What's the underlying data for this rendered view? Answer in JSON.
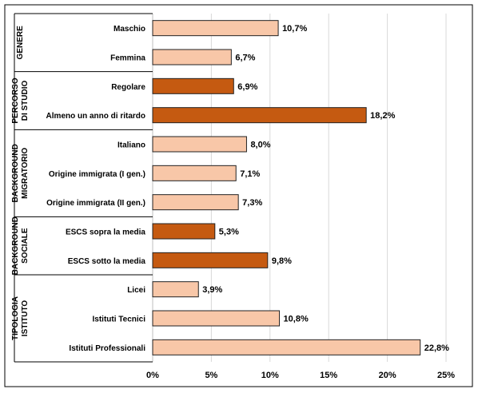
{
  "chart_data": {
    "type": "bar",
    "orientation": "horizontal",
    "title": "",
    "xlabel": "",
    "ylabel": "",
    "xlim": [
      0,
      25
    ],
    "x_ticks": [
      "0%",
      "5%",
      "10%",
      "15%",
      "20%",
      "25%"
    ],
    "grid": "vertical",
    "legend": "none",
    "colors": {
      "light": "#f8c7a8",
      "dark": "#c55a11",
      "border": "#222222"
    },
    "groups": [
      {
        "label_lines": [
          "GENERE"
        ],
        "categories": [
          {
            "label": "Maschio",
            "value": 10.7,
            "value_label": "10,7%",
            "shade": "light"
          },
          {
            "label": "Femmina",
            "value": 6.7,
            "value_label": "6,7%",
            "shade": "light"
          }
        ]
      },
      {
        "label_lines": [
          "PERCORSO",
          "DI STUDIO"
        ],
        "categories": [
          {
            "label": "Regolare",
            "value": 6.9,
            "value_label": "6,9%",
            "shade": "dark"
          },
          {
            "label": "Almeno un anno di ritardo",
            "value": 18.2,
            "value_label": "18,2%",
            "shade": "dark"
          }
        ]
      },
      {
        "label_lines": [
          "BACKGROUND",
          "MIGRATORIO"
        ],
        "categories": [
          {
            "label": "Italiano",
            "value": 8.0,
            "value_label": "8,0%",
            "shade": "light"
          },
          {
            "label": "Origine immigrata (I gen.)",
            "value": 7.1,
            "value_label": "7,1%",
            "shade": "light"
          },
          {
            "label": "Origine immigrata (II gen.)",
            "value": 7.3,
            "value_label": "7,3%",
            "shade": "light"
          }
        ]
      },
      {
        "label_lines": [
          "BACKGROUND",
          "SOCIALE"
        ],
        "categories": [
          {
            "label": "ESCS sopra la media",
            "value": 5.3,
            "value_label": "5,3%",
            "shade": "dark"
          },
          {
            "label": "ESCS sotto la media",
            "value": 9.8,
            "value_label": "9,8%",
            "shade": "dark"
          }
        ]
      },
      {
        "label_lines": [
          "TIPOLOGIA",
          "ISTITUTO"
        ],
        "categories": [
          {
            "label": "Licei",
            "value": 3.9,
            "value_label": "3,9%",
            "shade": "light"
          },
          {
            "label": "Istituti Tecnici",
            "value": 10.8,
            "value_label": "10,8%",
            "shade": "light"
          },
          {
            "label": "Istituti Professionali",
            "value": 22.8,
            "value_label": "22,8%",
            "shade": "light"
          }
        ]
      }
    ]
  }
}
